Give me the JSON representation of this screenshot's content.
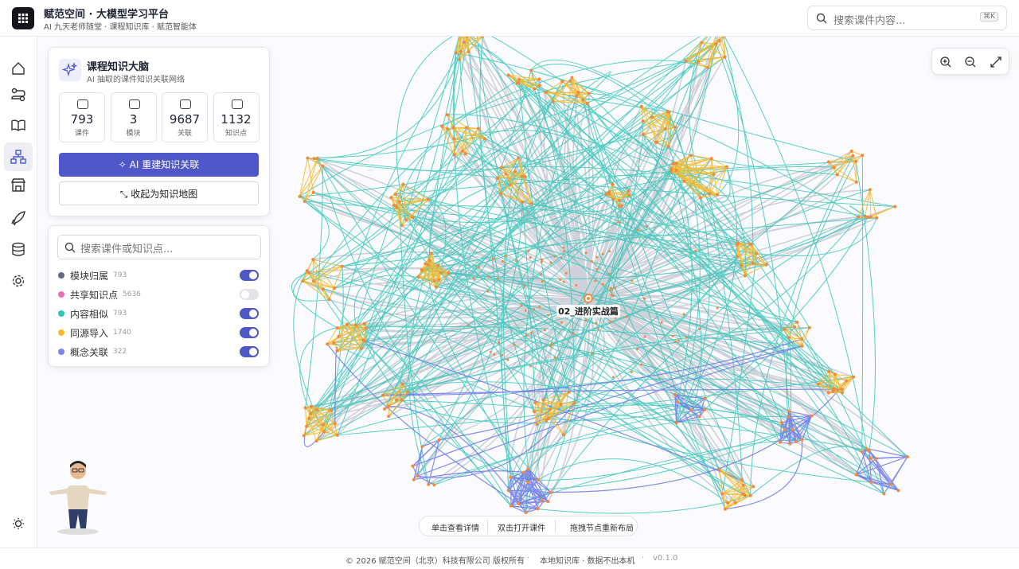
{
  "header": {
    "title": "赋范空间 · 大模型学习平台",
    "subtitle": "AI 九天老师随堂 · 课程知识库 · 赋范智能体",
    "search_placeholder": "搜索课件内容...",
    "shortcut": "⌘K"
  },
  "panel": {
    "title": "课程知识大脑",
    "subtitle": "AI 抽取的课件知识关联网络",
    "stats": [
      {
        "value": 793,
        "label": "课件"
      },
      {
        "value": 3,
        "label": "模块"
      },
      {
        "value": 9687,
        "label": "关联"
      },
      {
        "value": 1132,
        "label": "知识点"
      }
    ],
    "primary_button": "AI 重建知识关联",
    "secondary_button": "收起为知识地图"
  },
  "filter": {
    "search_placeholder": "搜索课件或知识点...",
    "items": [
      {
        "label": "模块归属",
        "count": 793,
        "color": "#5f6b85",
        "enabled": true
      },
      {
        "label": "共享知识点",
        "count": 5636,
        "color": "#ec6fb3",
        "enabled": false
      },
      {
        "label": "内容相似",
        "count": 793,
        "color": "#2ec4b6",
        "enabled": true
      },
      {
        "label": "同源导入",
        "count": 1740,
        "color": "#f6b92b",
        "enabled": true
      },
      {
        "label": "概念关联",
        "count": 322,
        "color": "#7b84ee",
        "enabled": true
      }
    ]
  },
  "graph": {
    "center_label": "02_进阶实战篇"
  },
  "hints": [
    "单击查看详情",
    "双击打开课件",
    "拖拽节点重新布局"
  ],
  "footer": {
    "copyright": "© 2026 赋范空间（北京）科技有限公司 版权所有",
    "note": "本地知识库 · 数据不出本机",
    "version": "v0.1.0"
  }
}
